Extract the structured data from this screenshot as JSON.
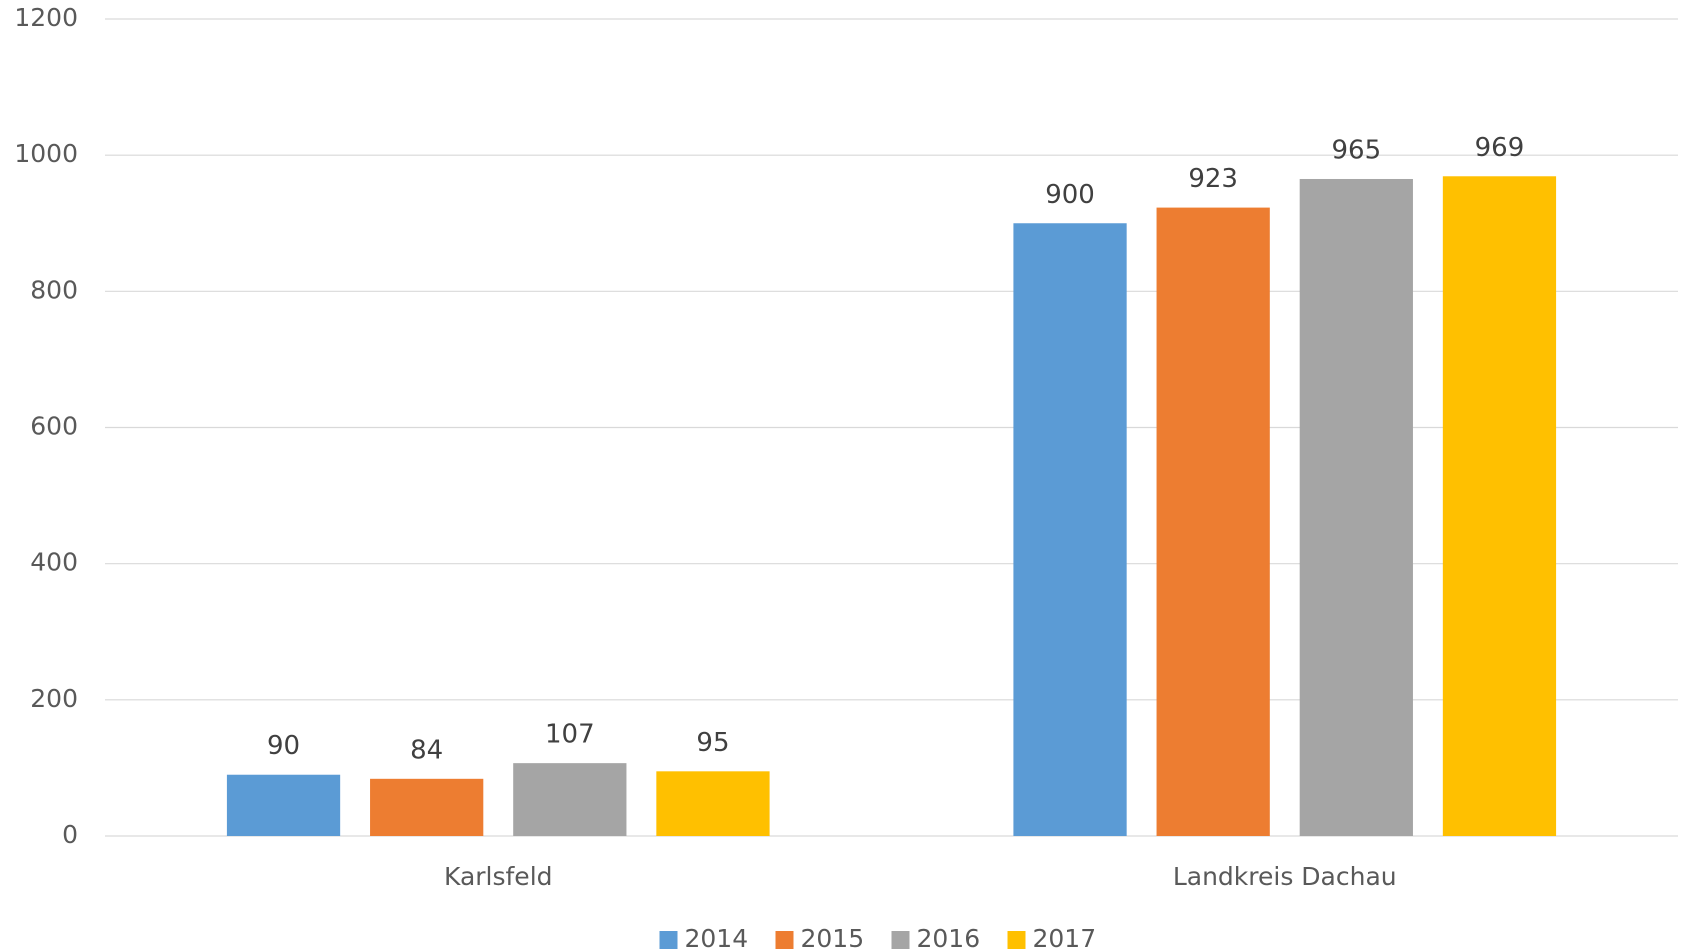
{
  "chart_data": {
    "type": "bar",
    "categories": [
      "Karlsfeld",
      "Landkreis Dachau"
    ],
    "series": [
      {
        "name": "2014",
        "color": "#5b9bd5",
        "values": [
          90,
          900
        ]
      },
      {
        "name": "2015",
        "color": "#ed7d31",
        "values": [
          84,
          923
        ]
      },
      {
        "name": "2016",
        "color": "#a5a5a5",
        "values": [
          107,
          965
        ]
      },
      {
        "name": "2017",
        "color": "#ffc000",
        "values": [
          95,
          969
        ]
      }
    ],
    "ylim": [
      0,
      1200
    ],
    "yticks": [
      0,
      200,
      400,
      600,
      800,
      1000,
      1200
    ],
    "grid": true,
    "legend": "bottom"
  }
}
